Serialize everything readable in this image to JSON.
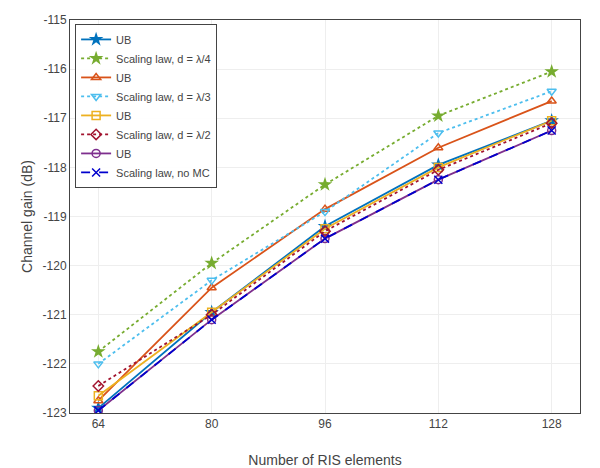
{
  "chart_data": {
    "type": "line",
    "x": [
      64,
      80,
      96,
      112,
      128
    ],
    "series": [
      {
        "name": "UB",
        "color": "#0072BD",
        "marker": "star",
        "line_style": "solid",
        "values": [
          -122.9,
          -120.95,
          -119.2,
          -117.95,
          -117.05
        ]
      },
      {
        "name": "UB",
        "color": "#D95319",
        "marker": "triangle-up-open",
        "line_style": "solid",
        "values": [
          -122.75,
          -120.45,
          -118.85,
          -117.6,
          -116.65
        ]
      },
      {
        "name": "UB",
        "color": "#EDB120",
        "marker": "square-open",
        "line_style": "solid",
        "values": [
          -122.65,
          -120.95,
          -119.25,
          -118.0,
          -117.05
        ]
      },
      {
        "name": "UB",
        "color": "#7E2F8E",
        "marker": "circle-open",
        "line_style": "solid",
        "values": [
          -122.95,
          -121.1,
          -119.45,
          -118.25,
          -117.25
        ]
      },
      {
        "name": "Scaling law, d = λ/4",
        "color": "#77AC30",
        "marker": "star",
        "line_style": "dot",
        "values": [
          -121.75,
          -119.95,
          -118.35,
          -116.95,
          -116.05
        ]
      },
      {
        "name": "Scaling law, d = λ/3",
        "color": "#4DBEEE",
        "marker": "triangle-down-open",
        "line_style": "dot",
        "values": [
          -122.0,
          -120.3,
          -118.9,
          -117.3,
          -116.45
        ]
      },
      {
        "name": "Scaling law, d = λ/2",
        "color": "#A2142F",
        "marker": "diamond-open",
        "line_style": "dot",
        "values": [
          -122.45,
          -121.0,
          -119.3,
          -118.05,
          -117.1
        ]
      },
      {
        "name": "Scaling law, no MC",
        "color": "#0000CD",
        "marker": "x-thin-open",
        "line_style": "dash",
        "values": [
          -122.95,
          -121.1,
          -119.45,
          -118.25,
          -117.25
        ]
      }
    ],
    "xlabel": "Number of RIS elements",
    "ylabel": "Channel gain (dB)",
    "xlim": [
      60,
      132
    ],
    "ylim": [
      -123.0,
      -115.0
    ],
    "xticks": [
      64,
      80,
      96,
      112,
      128
    ],
    "yticks": [
      -123,
      -122,
      -121,
      -120,
      -119,
      -118,
      -117,
      -116,
      -115
    ],
    "grid": true,
    "legend": "upper left"
  }
}
